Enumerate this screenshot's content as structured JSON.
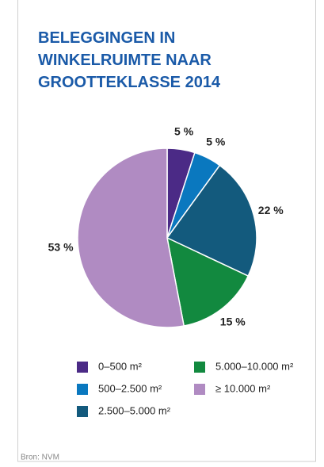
{
  "chart_data": {
    "type": "pie",
    "title": "BELEGGINGEN IN WINKELRUIMTE NAAR GROOTTEKLASSE 2014",
    "categories": [
      "0–500 m²",
      "500–2.500 m²",
      "2.500–5.000 m²",
      "5.000–10.000 m²",
      "≥ 10.000 m²"
    ],
    "values": [
      5,
      5,
      22,
      15,
      53
    ],
    "value_labels": [
      "5 %",
      "5 %",
      "22 %",
      "15 %",
      "53 %"
    ],
    "colors": [
      "#4b2a86",
      "#0a78bf",
      "#135a7d",
      "#12893f",
      "#b08bc2"
    ],
    "source": "Bron: NVM"
  }
}
